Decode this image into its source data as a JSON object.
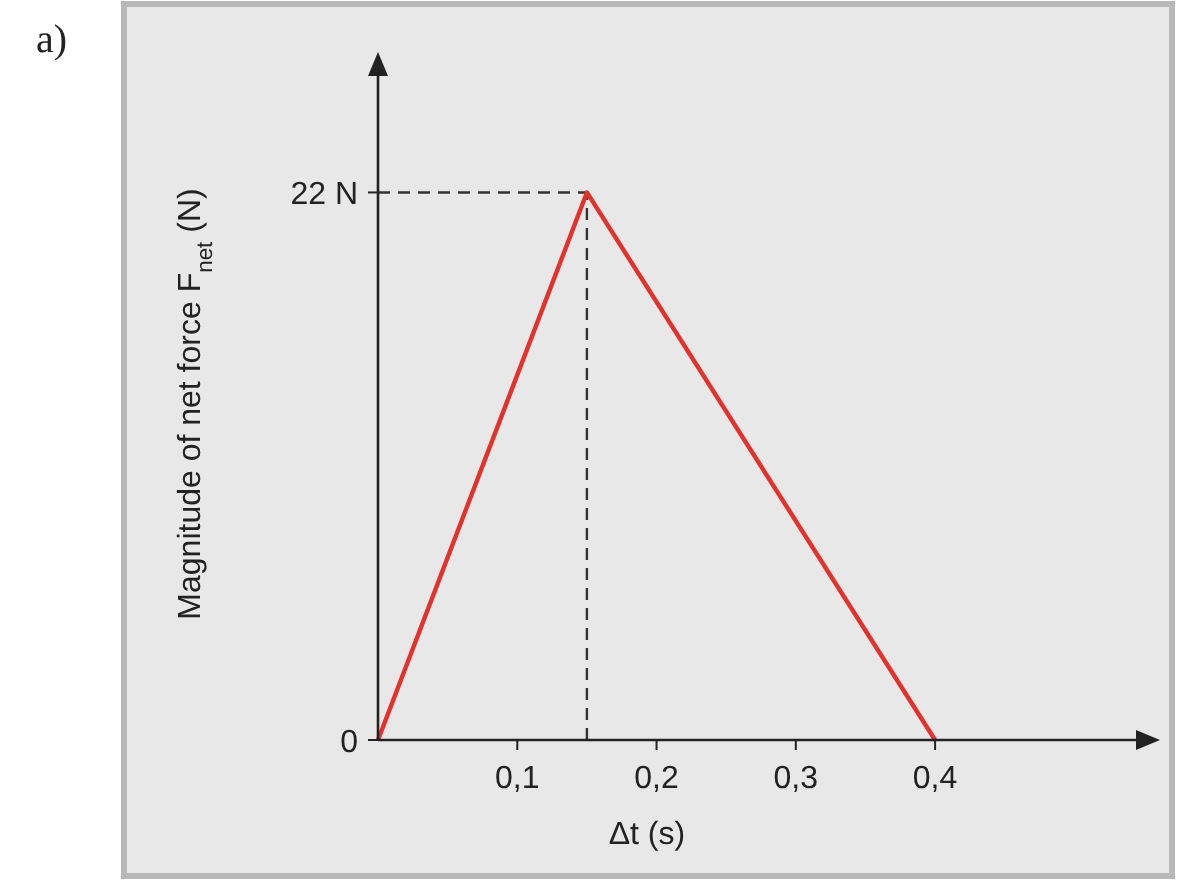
{
  "chart_data": {
    "type": "line",
    "xlabel": "Δt (s)",
    "ylabel": "Magnitude of net force F$_{net}$ (N)",
    "x": [
      0,
      0.15,
      0.4
    ],
    "series": [
      {
        "color": "#e2322b",
        "values": [
          0,
          22,
          0
        ]
      }
    ],
    "xlim": [
      0,
      0.55
    ],
    "ylim": [
      0,
      27
    ],
    "xticks": [
      {
        "value": 0.1,
        "label": "0,1"
      },
      {
        "value": 0.2,
        "label": "0,2"
      },
      {
        "value": 0.3,
        "label": "0,3"
      },
      {
        "value": 0.4,
        "label": "0,4"
      }
    ],
    "yticks": [
      {
        "value": 0,
        "label": "0"
      },
      {
        "value": 22,
        "label": "22 N"
      }
    ],
    "ref_lines": [
      {
        "axis": "y",
        "value": 22,
        "line_style": "dashed",
        "color": "#333333"
      },
      {
        "axis": "x",
        "value": 0.15,
        "line_style": "dashed",
        "color": "#333333"
      }
    ],
    "annotations": [
      "a)"
    ],
    "grid": false,
    "marker": "none",
    "line_style": "solid"
  }
}
